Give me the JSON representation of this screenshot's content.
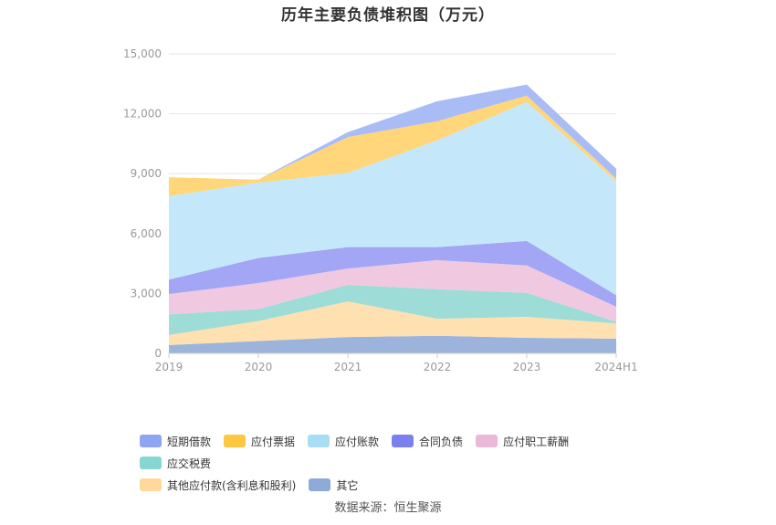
{
  "title": "历年主要负债堆积图（万元）",
  "source": "数据来源：恒生聚源",
  "chart_data": {
    "type": "area",
    "stacked": true,
    "categories": [
      "2019",
      "2020",
      "2021",
      "2022",
      "2023",
      "2024H1"
    ],
    "ylim": [
      0,
      15000
    ],
    "yticks": [
      "0",
      "3,000",
      "6,000",
      "9,000",
      "12,000",
      "15,000"
    ],
    "ytick_values": [
      0,
      3000,
      6000,
      9000,
      12000,
      15000
    ],
    "grid": true,
    "legend_position": "bottom",
    "series": [
      {
        "name": "其它",
        "color": "#9cb4dc",
        "values": [
          420,
          620,
          820,
          880,
          780,
          740
        ]
      },
      {
        "name": "其他应付款(含利息和股利)",
        "color": "#ffe0b0",
        "values": [
          500,
          1000,
          1780,
          850,
          1050,
          760
        ]
      },
      {
        "name": "应交税费",
        "color": "#9edcd8",
        "values": [
          1030,
          600,
          830,
          1480,
          1200,
          80
        ]
      },
      {
        "name": "应付职工薪酬",
        "color": "#f0c8e0",
        "values": [
          1020,
          1300,
          820,
          1460,
          1370,
          760
        ]
      },
      {
        "name": "合同负债",
        "color": "#a2a6f4",
        "values": [
          720,
          1260,
          1070,
          650,
          1230,
          570
        ]
      },
      {
        "name": "应付账款",
        "color": "#c4e8fa",
        "values": [
          4180,
          3770,
          3710,
          5350,
          6960,
          5700
        ]
      },
      {
        "name": "应付票据",
        "color": "#ffd67a",
        "values": [
          950,
          150,
          1800,
          960,
          320,
          150
        ]
      },
      {
        "name": "短期借款",
        "color": "#a9bcf6",
        "values": [
          0,
          0,
          250,
          1000,
          550,
          490
        ]
      }
    ]
  },
  "legend": {
    "row1": [
      {
        "name": "短期借款",
        "color": "#8ea6f2"
      },
      {
        "name": "应付票据",
        "color": "#ffc640"
      },
      {
        "name": "应付账款",
        "color": "#a8ddf6"
      },
      {
        "name": "合同负债",
        "color": "#7a80ee"
      },
      {
        "name": "应付职工薪酬",
        "color": "#ebb8d8"
      },
      {
        "name": "应交税费",
        "color": "#86d6d2"
      }
    ],
    "row2": [
      {
        "name": "其他应付款(含利息和股利)",
        "color": "#ffd89a"
      },
      {
        "name": "其它",
        "color": "#8eaad6"
      }
    ]
  }
}
